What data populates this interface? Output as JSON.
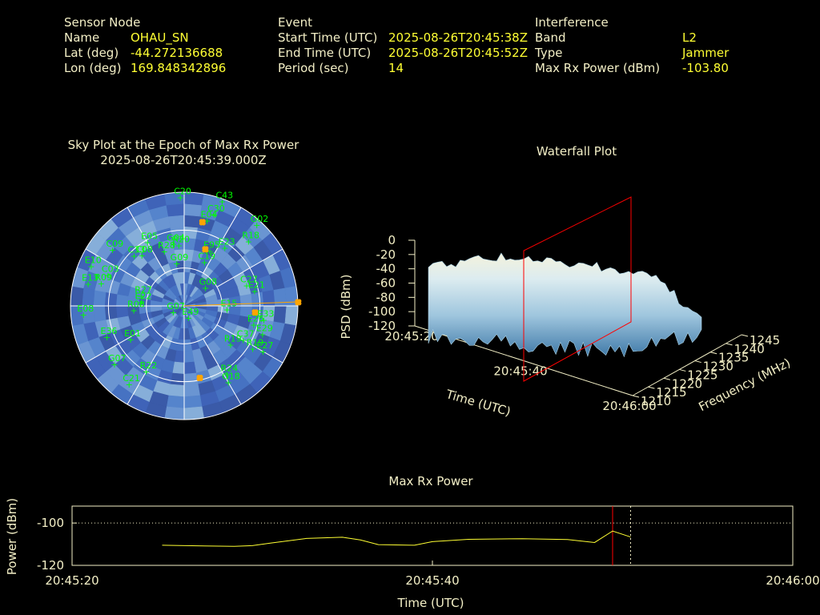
{
  "header": {
    "sensor": {
      "heading": "Sensor Node",
      "rows": [
        {
          "label": "Name",
          "value": "OHAU_SN"
        },
        {
          "label": "Lat (deg)",
          "value": "-44.272136688"
        },
        {
          "label": "Lon (deg)",
          "value": "169.848342896"
        }
      ]
    },
    "event": {
      "heading": "Event",
      "rows": [
        {
          "label": "Start Time (UTC)",
          "value": "2025-08-26T20:45:38Z"
        },
        {
          "label": "End Time (UTC)",
          "value": "2025-08-26T20:45:52Z"
        },
        {
          "label": "Period (sec)",
          "value": "14"
        }
      ]
    },
    "interference": {
      "heading": "Interference",
      "rows": [
        {
          "label": "Band",
          "value": "L2"
        },
        {
          "label": "Type",
          "value": "Jammer"
        },
        {
          "label": "Max Rx Power (dBm)",
          "value": "-103.80"
        }
      ]
    }
  },
  "colors": {
    "label": "#f3efc6",
    "value": "#ffff33",
    "sat": "#00ff00",
    "jammer": "#ffa500",
    "marker": "#ff0000",
    "line": "#ffff33"
  },
  "chart_data": [
    {
      "type": "scatter",
      "subtype": "polar-skyplot",
      "title": "Sky Plot at the Epoch of Max Rx Power",
      "subtitle": "2025-08-26T20:45:39.000Z",
      "satellites": [
        {
          "id": "C20",
          "az": 358,
          "el": 4
        },
        {
          "id": "C43",
          "az": 20,
          "el": 2
        },
        {
          "id": "C30",
          "az": 18,
          "el": 14
        },
        {
          "id": "E04",
          "az": 15,
          "el": 20
        },
        {
          "id": "G02",
          "az": 42,
          "el": 4
        },
        {
          "id": "R18",
          "az": 45,
          "el": 18
        },
        {
          "id": "E23",
          "az": 35,
          "el": 34
        },
        {
          "id": "C19",
          "az": 25,
          "el": 52
        },
        {
          "id": "G08",
          "az": 50,
          "el": 68
        },
        {
          "id": "C27",
          "az": 72,
          "el": 38
        },
        {
          "id": "E21",
          "az": 78,
          "el": 33
        },
        {
          "id": "E15",
          "az": 95,
          "el": 56
        },
        {
          "id": "E33",
          "az": 100,
          "el": 26
        },
        {
          "id": "E26",
          "az": 105,
          "el": 33
        },
        {
          "id": "E29",
          "az": 110,
          "el": 24
        },
        {
          "id": "C37",
          "az": 120,
          "el": 36
        },
        {
          "id": "R19",
          "az": 122,
          "el": 26
        },
        {
          "id": "E27",
          "az": 120,
          "el": 18
        },
        {
          "id": "R19",
          "az": 130,
          "el": 42
        },
        {
          "id": "R24",
          "az": 148,
          "el": 26
        },
        {
          "id": "G18",
          "az": 150,
          "el": 20
        },
        {
          "id": "E49",
          "az": 160,
          "el": 80
        },
        {
          "id": "R22",
          "az": 210,
          "el": 30
        },
        {
          "id": "C21",
          "az": 215,
          "el": 14
        },
        {
          "id": "G07",
          "az": 230,
          "el": 18
        },
        {
          "id": "E01",
          "az": 238,
          "el": 40
        },
        {
          "id": "G07",
          "az": 240,
          "el": 80
        },
        {
          "id": "E36",
          "az": 248,
          "el": 24
        },
        {
          "id": "E08",
          "az": 265,
          "el": 10
        },
        {
          "id": "R08",
          "az": 265,
          "el": 50
        },
        {
          "id": "R09",
          "az": 285,
          "el": 22
        },
        {
          "id": "E13",
          "az": 283,
          "el": 12
        },
        {
          "id": "E22",
          "az": 275,
          "el": 56
        },
        {
          "id": "R27",
          "az": 283,
          "el": 55
        },
        {
          "id": "C03",
          "az": 292,
          "el": 25
        },
        {
          "id": "E10",
          "az": 293,
          "el": 10
        },
        {
          "id": "C09",
          "az": 308,
          "el": 18
        },
        {
          "id": "C33",
          "az": 315,
          "el": 34
        },
        {
          "id": "C08",
          "az": 320,
          "el": 38
        },
        {
          "id": "E05",
          "az": 330,
          "el": 32
        },
        {
          "id": "R28",
          "az": 340,
          "el": 44
        },
        {
          "id": "G04",
          "az": 350,
          "el": 40
        },
        {
          "id": "G09",
          "az": 350,
          "el": 56
        },
        {
          "id": "E95",
          "az": 25,
          "el": 42
        },
        {
          "id": "R20",
          "az": 355,
          "el": 42
        }
      ],
      "jammer_directions": [
        {
          "az": 88,
          "el": 0
        },
        {
          "az": 20,
          "el": 42
        },
        {
          "az": 12,
          "el": 22
        },
        {
          "az": 168,
          "el": 32
        },
        {
          "az": 95,
          "el": 34
        }
      ]
    },
    {
      "type": "area",
      "subtype": "3d-waterfall",
      "title": "Waterfall Plot",
      "xlabel": "Time (UTC)",
      "ylabel": "Frequency (MHz)",
      "zlabel": "PSD (dBm)",
      "x_ticks": [
        "20:45:20",
        "20:45:40",
        "20:46:00"
      ],
      "y_ticks": [
        1210,
        1215,
        1220,
        1225,
        1230,
        1235,
        1240,
        1245
      ],
      "z_ticks": [
        0,
        -20,
        -40,
        -60,
        -80,
        -100,
        -120
      ],
      "zlim": [
        -120,
        0
      ],
      "marker_time": "20:45:39"
    },
    {
      "type": "line",
      "title": "Max Rx Power",
      "xlabel": "Time (UTC)",
      "ylabel": "Power (dBm)",
      "x_ticks": [
        "20:45:20",
        "20:45:40",
        "20:46:00"
      ],
      "y_ticks": [
        -100,
        -120
      ],
      "xlim": [
        0,
        40
      ],
      "ylim": [
        -120,
        -92
      ],
      "series": [
        {
          "x": [
            5,
            7,
            9,
            10,
            11,
            13,
            15,
            16,
            17,
            19,
            20,
            22,
            25,
            27.5,
            29,
            30,
            31
          ],
          "y": [
            -110.5,
            -110.8,
            -111,
            -110.7,
            -109.5,
            -107.3,
            -106.7,
            -108,
            -110.2,
            -110.5,
            -108.8,
            -107.7,
            -107.4,
            -107.8,
            -109.2,
            -103.8,
            -106.6
          ]
        }
      ],
      "marker_x": 30,
      "dashed_x": 31,
      "hline_dotted": -100
    }
  ]
}
